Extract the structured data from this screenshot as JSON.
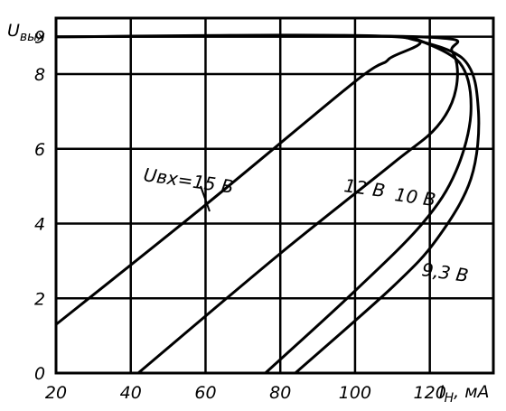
{
  "chart_data": {
    "type": "line",
    "xlabel": "I",
    "xlabel_sub": "Н",
    "xlabel_unit": ", мА",
    "ylabel": "U",
    "ylabel_sub": "вых",
    "xlim": [
      20,
      137
    ],
    "ylim": [
      0,
      9.5
    ],
    "x_ticks": [
      "20",
      "40",
      "60",
      "80",
      "100",
      "120"
    ],
    "x_tick_values": [
      20,
      40,
      60,
      80,
      100,
      120
    ],
    "y_ticks": [
      "0",
      "2",
      "4",
      "6",
      "8",
      "9"
    ],
    "y_tick_values": [
      0,
      2,
      4,
      6,
      8,
      9
    ],
    "grid": true,
    "series": [
      {
        "name": "Uвх=15 В",
        "label": "Uвх=15 В",
        "points": [
          [
            20,
            1.3
          ],
          [
            60,
            4.5
          ],
          [
            100,
            7.8
          ],
          [
            109,
            8.4
          ],
          [
            111,
            9.0
          ],
          [
            20,
            9.0
          ]
        ]
      },
      {
        "name": "12 В",
        "label": "12 В",
        "points": [
          [
            42,
            0
          ],
          [
            80,
            3.2
          ],
          [
            110,
            5.6
          ],
          [
            122,
            6.6
          ],
          [
            127,
            7.6
          ],
          [
            126,
            8.6
          ],
          [
            117,
            9.0
          ],
          [
            20,
            9.0
          ]
        ]
      },
      {
        "name": "10 В",
        "label": "10 В",
        "points": [
          [
            76,
            0
          ],
          [
            100,
            2.2
          ],
          [
            118,
            4.0
          ],
          [
            127,
            5.4
          ],
          [
            131,
            7.0
          ],
          [
            128,
            8.3
          ],
          [
            115,
            9.0
          ]
        ]
      },
      {
        "name": "9,3 В",
        "label": "9,3 В",
        "points": [
          [
            84,
            0
          ],
          [
            110,
            2.3
          ],
          [
            122,
            3.6
          ],
          [
            131,
            5.2
          ],
          [
            133,
            7.0
          ],
          [
            129,
            8.4
          ],
          [
            113,
            9.0
          ]
        ]
      }
    ]
  }
}
